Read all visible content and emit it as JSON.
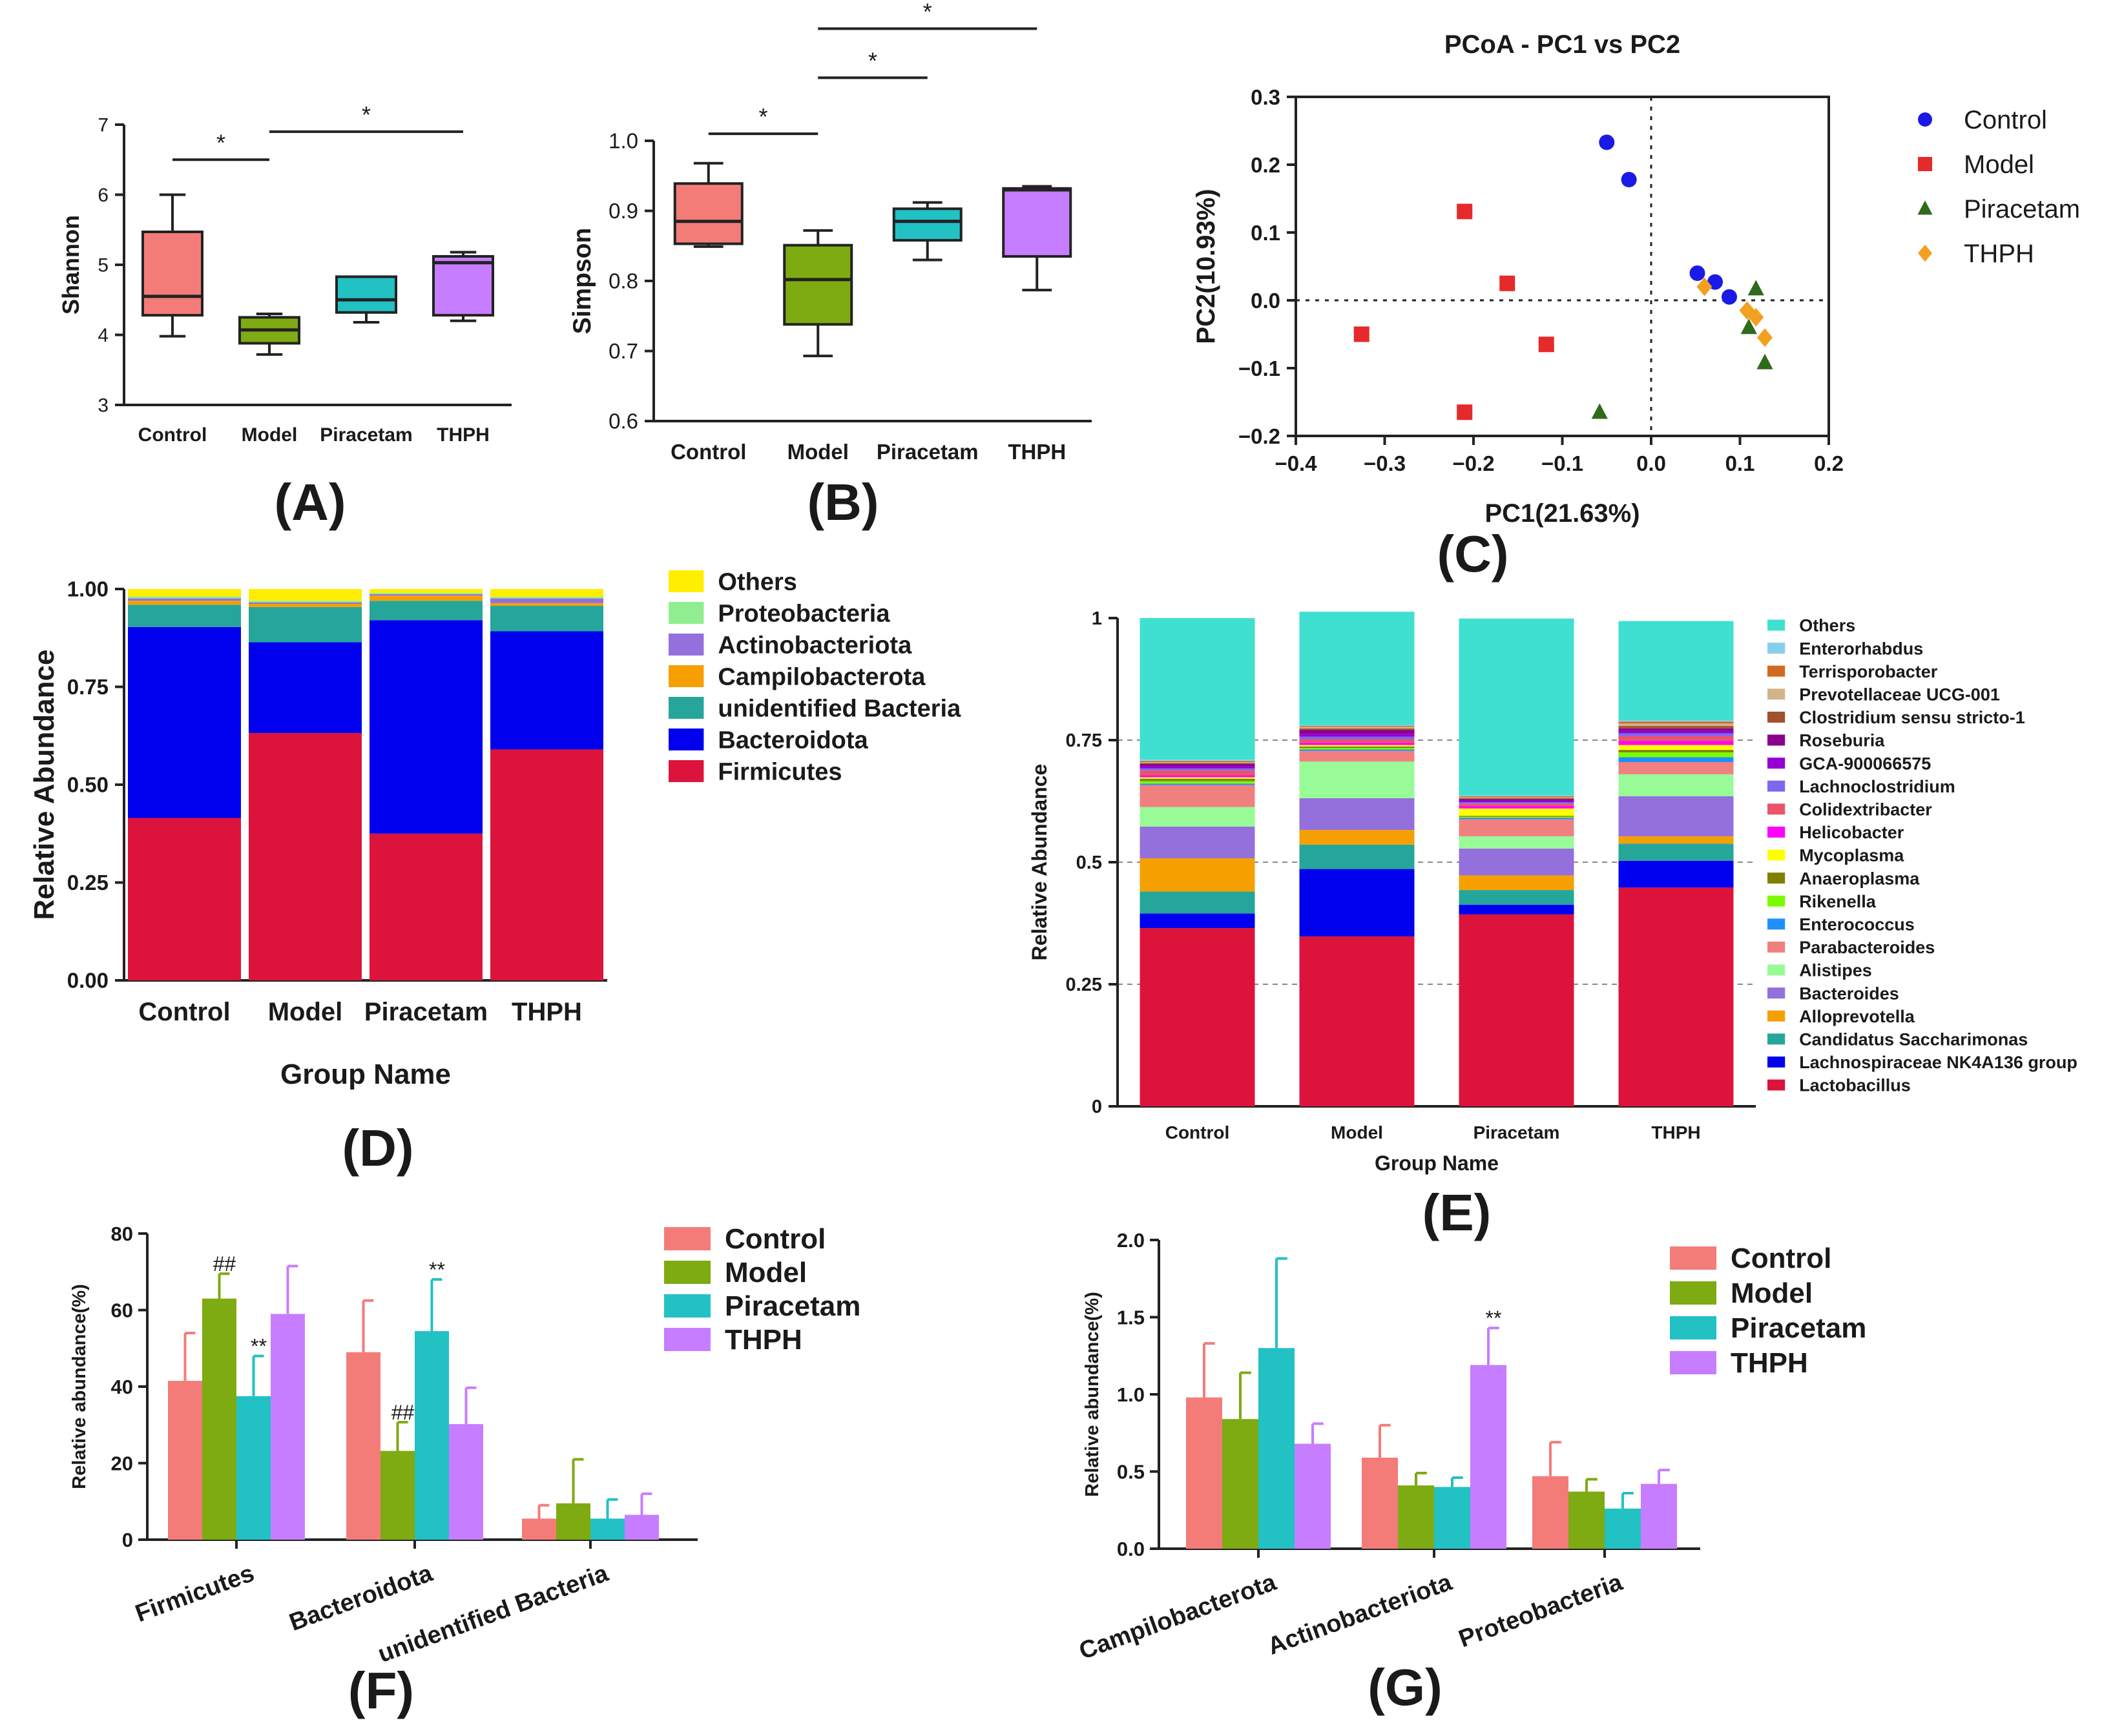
{
  "figure": {
    "panel_labels": [
      "(A)",
      "(B)",
      "(C)",
      "(D)",
      "(E)",
      "(F)",
      "(G)"
    ]
  },
  "chart_data": [
    {
      "panel": "A",
      "type": "boxplot",
      "ylabel": "Shannon",
      "ylim": [
        3,
        7
      ],
      "yticks": [
        "3",
        "4",
        "5",
        "6",
        "7"
      ],
      "categories": [
        "Control",
        "Model",
        "Piracetam",
        "THPH"
      ],
      "colors": [
        "#f37c79",
        "#7eaa12",
        "#21c1c4",
        "#c77dff"
      ],
      "boxes": [
        {
          "min": 3.98,
          "q1": 4.28,
          "median": 4.55,
          "q3": 5.47,
          "max": 6.0
        },
        {
          "min": 3.72,
          "q1": 3.88,
          "median": 4.07,
          "q3": 4.25,
          "max": 4.3
        },
        {
          "min": 4.18,
          "q1": 4.32,
          "median": 4.5,
          "q3": 4.83,
          "max": 4.83
        },
        {
          "min": 4.2,
          "q1": 4.28,
          "median": 5.03,
          "q3": 5.12,
          "max": 5.18
        }
      ],
      "significance": [
        {
          "from": 0,
          "to": 1,
          "label": "*",
          "y": 6.5
        },
        {
          "from": 1,
          "to": 3,
          "label": "*",
          "y": 6.9
        }
      ]
    },
    {
      "panel": "B",
      "type": "boxplot",
      "ylabel": "Simpson",
      "ylim": [
        0.6,
        1.0
      ],
      "yticks": [
        "0.6",
        "0.7",
        "0.8",
        "0.9",
        "1.0"
      ],
      "categories": [
        "Control",
        "Model",
        "Piracetam",
        "THPH"
      ],
      "colors": [
        "#f37c79",
        "#7eaa12",
        "#21c1c4",
        "#c77dff"
      ],
      "boxes": [
        {
          "min": 0.849,
          "q1": 0.853,
          "median": 0.885,
          "q3": 0.939,
          "max": 0.968
        },
        {
          "min": 0.693,
          "q1": 0.738,
          "median": 0.802,
          "q3": 0.851,
          "max": 0.872
        },
        {
          "min": 0.83,
          "q1": 0.858,
          "median": 0.885,
          "q3": 0.903,
          "max": 0.912
        },
        {
          "min": 0.787,
          "q1": 0.835,
          "median": 0.93,
          "q3": 0.932,
          "max": 0.935
        }
      ],
      "significance": [
        {
          "from": 0,
          "to": 1,
          "label": "*",
          "y": 1.01
        },
        {
          "from": 1,
          "to": 2,
          "label": "*",
          "y": 1.09
        },
        {
          "from": 1,
          "to": 3,
          "label": "*",
          "y": 1.16
        }
      ]
    },
    {
      "panel": "C",
      "type": "scatter",
      "title": "PCoA - PC1 vs PC2",
      "xlabel": "PC1(21.63%)",
      "ylabel": "PC2(10.93%)",
      "xlim": [
        -0.4,
        0.2
      ],
      "ylim": [
        -0.2,
        0.3
      ],
      "xticks": [
        "−0.4",
        "−0.3",
        "−0.2",
        "−0.1",
        "0.0",
        "0.1",
        "0.2"
      ],
      "yticks": [
        "−0.2",
        "−0.1",
        "0.0",
        "0.1",
        "0.2",
        "0.3"
      ],
      "series": [
        {
          "name": "Control",
          "marker": "circle",
          "color": "#1a1ae6",
          "points": [
            [
              -0.05,
              0.233
            ],
            [
              -0.025,
              0.178
            ],
            [
              0.052,
              0.04
            ],
            [
              0.072,
              0.027
            ],
            [
              0.088,
              0.005
            ]
          ]
        },
        {
          "name": "Model",
          "marker": "square",
          "color": "#e6292b",
          "points": [
            [
              -0.21,
              0.131
            ],
            [
              -0.162,
              0.025
            ],
            [
              -0.326,
              -0.05
            ],
            [
              -0.118,
              -0.065
            ],
            [
              -0.21,
              -0.165
            ]
          ]
        },
        {
          "name": "Piracetam",
          "marker": "triangle",
          "color": "#2e6b1c",
          "points": [
            [
              -0.058,
              -0.165
            ],
            [
              0.118,
              0.017
            ],
            [
              0.11,
              -0.04
            ],
            [
              0.128,
              -0.092
            ]
          ]
        },
        {
          "name": "THPH",
          "marker": "diamond",
          "color": "#f2a020",
          "points": [
            [
              0.06,
              0.02
            ],
            [
              0.108,
              -0.015
            ],
            [
              0.118,
              -0.025
            ],
            [
              0.128,
              -0.055
            ]
          ]
        }
      ]
    },
    {
      "panel": "D",
      "type": "stacked-bar",
      "xlabel": "Group Name",
      "ylabel": "Relative Abundance",
      "ylim": [
        0,
        1
      ],
      "yticks": [
        "0.00",
        "0.25",
        "0.50",
        "0.75",
        "1.00"
      ],
      "categories": [
        "Control",
        "Model",
        "Piracetam",
        "THPH"
      ],
      "series": [
        {
          "name": "Firmicutes",
          "color": "#dc143c",
          "values": [
            0.415,
            0.632,
            0.375,
            0.59
          ]
        },
        {
          "name": "Bacteroidota",
          "color": "#0000ee",
          "values": [
            0.488,
            0.232,
            0.545,
            0.302
          ]
        },
        {
          "name": "unidentified  Bacteria",
          "color": "#26a69a",
          "values": [
            0.057,
            0.09,
            0.05,
            0.065
          ]
        },
        {
          "name": "Campilobacterota",
          "color": "#f5a000",
          "values": [
            0.01,
            0.008,
            0.013,
            0.007
          ]
        },
        {
          "name": "Actinobacteriota",
          "color": "#9370db",
          "values": [
            0.006,
            0.004,
            0.004,
            0.012
          ]
        },
        {
          "name": "Proteobacteria",
          "color": "#90ee90",
          "values": [
            0.005,
            0.004,
            0.003,
            0.004
          ]
        },
        {
          "name": "Others",
          "color": "#ffee00",
          "values": [
            0.019,
            0.03,
            0.01,
            0.02
          ]
        }
      ]
    },
    {
      "panel": "E",
      "type": "stacked-bar",
      "xlabel": "Group Name",
      "ylabel": "Relative Abundance",
      "ylim": [
        0,
        1
      ],
      "yticks": [
        "0",
        "0.25",
        "0.5",
        "0.75",
        "1"
      ],
      "categories": [
        "Control",
        "Model",
        "Piracetam",
        "THPH"
      ],
      "series": [
        {
          "name": "Lactobacillus",
          "color": "#dc143c",
          "values": [
            0.365,
            0.348,
            0.393,
            0.448
          ]
        },
        {
          "name": "Lachnospiraceae NK4A136 group",
          "color": "#0000ee",
          "values": [
            0.03,
            0.138,
            0.02,
            0.055
          ]
        },
        {
          "name": "Candidatus Saccharimonas",
          "color": "#26a69a",
          "values": [
            0.045,
            0.05,
            0.03,
            0.035
          ]
        },
        {
          "name": "Alloprevotella",
          "color": "#f5a000",
          "values": [
            0.068,
            0.03,
            0.03,
            0.015
          ]
        },
        {
          "name": "Bacteroides",
          "color": "#9370db",
          "values": [
            0.065,
            0.065,
            0.055,
            0.082
          ]
        },
        {
          "name": "Alistipes",
          "color": "#98fb98",
          "values": [
            0.04,
            0.075,
            0.025,
            0.045
          ]
        },
        {
          "name": "Parabacteroides",
          "color": "#f08080",
          "values": [
            0.045,
            0.022,
            0.035,
            0.025
          ]
        },
        {
          "name": "Enterococcus",
          "color": "#1e90ff",
          "values": [
            0.003,
            0.003,
            0.003,
            0.01
          ]
        },
        {
          "name": "Rikenella",
          "color": "#7cfc00",
          "values": [
            0.005,
            0.003,
            0.002,
            0.01
          ]
        },
        {
          "name": "Anaeroplasma",
          "color": "#808000",
          "values": [
            0.005,
            0.003,
            0.002,
            0.005
          ]
        },
        {
          "name": "Mycoplasma",
          "color": "#ffff00",
          "values": [
            0.003,
            0.003,
            0.015,
            0.01
          ]
        },
        {
          "name": "Helicobacter",
          "color": "#ff00ff",
          "values": [
            0.004,
            0.005,
            0.005,
            0.008
          ]
        },
        {
          "name": "Colidextribacter",
          "color": "#e9546b",
          "values": [
            0.01,
            0.007,
            0.005,
            0.01
          ]
        },
        {
          "name": "Lachnoclostridium",
          "color": "#7b68ee",
          "values": [
            0.004,
            0.005,
            0.003,
            0.006
          ]
        },
        {
          "name": "GCA-900066575",
          "color": "#9400d3",
          "values": [
            0.005,
            0.006,
            0.004,
            0.005
          ]
        },
        {
          "name": "Roseburia",
          "color": "#8b008b",
          "values": [
            0.004,
            0.008,
            0.002,
            0.005
          ]
        },
        {
          "name": "Clostridium sensu stricto-1",
          "color": "#a0522d",
          "values": [
            0.002,
            0.003,
            0.002,
            0.005
          ]
        },
        {
          "name": "Prevotellaceae UCG-001",
          "color": "#d2b48c",
          "values": [
            0.002,
            0.003,
            0.002,
            0.005
          ]
        },
        {
          "name": "Terrisporobacter",
          "color": "#d2691e",
          "values": [
            0.002,
            0.002,
            0.002,
            0.004
          ]
        },
        {
          "name": "Enterorhabdus",
          "color": "#87ceeb",
          "values": [
            0.003,
            0.002,
            0.002,
            0.003
          ]
        },
        {
          "name": "Others",
          "color": "#40e0d0",
          "values": [
            0.29,
            0.232,
            0.362,
            0.203
          ]
        }
      ]
    },
    {
      "panel": "F",
      "type": "bar",
      "ylabel": "Relative abundance(%)",
      "ylim": [
        0,
        80
      ],
      "yticks": [
        "0",
        "20",
        "40",
        "60",
        "80"
      ],
      "categories": [
        "Firmicutes",
        "Bacteroidota",
        "unidentified Bacteria"
      ],
      "series": [
        {
          "name": "Control",
          "color": "#f37c79",
          "values": [
            41.5,
            49,
            5.5
          ],
          "errors": [
            12.5,
            13.5,
            3.5
          ]
        },
        {
          "name": "Model",
          "color": "#7eaa12",
          "values": [
            63,
            23.2,
            9.5
          ],
          "errors": [
            6.5,
            7.5,
            11.5
          ]
        },
        {
          "name": "Piracetam",
          "color": "#21c1c4",
          "values": [
            37.5,
            54.5,
            5.5
          ],
          "errors": [
            10.5,
            13.5,
            5
          ]
        },
        {
          "name": "THPH",
          "color": "#c77dff",
          "values": [
            59,
            30.2,
            6.5
          ],
          "errors": [
            12.5,
            9.5,
            5.5
          ]
        }
      ],
      "annotations": [
        {
          "category": 0,
          "series": 1,
          "label": "##"
        },
        {
          "category": 0,
          "series": 2,
          "label": "**"
        },
        {
          "category": 1,
          "series": 1,
          "label": "##"
        },
        {
          "category": 1,
          "series": 2,
          "label": "**"
        }
      ]
    },
    {
      "panel": "G",
      "type": "bar",
      "ylabel": "Relative abundance(%)",
      "ylim": [
        0,
        2.0
      ],
      "yticks": [
        "0.0",
        "0.5",
        "1.0",
        "1.5",
        "2.0"
      ],
      "categories": [
        "Campilobacterota",
        "Actinobacteriota",
        "Proteobacteria"
      ],
      "series": [
        {
          "name": "Control",
          "color": "#f37c79",
          "values": [
            0.98,
            0.59,
            0.47
          ],
          "errors": [
            0.35,
            0.21,
            0.22
          ]
        },
        {
          "name": "Model",
          "color": "#7eaa12",
          "values": [
            0.84,
            0.41,
            0.37
          ],
          "errors": [
            0.3,
            0.08,
            0.08
          ]
        },
        {
          "name": "Piracetam",
          "color": "#21c1c4",
          "values": [
            1.3,
            0.4,
            0.26
          ],
          "errors": [
            0.58,
            0.06,
            0.1
          ]
        },
        {
          "name": "THPH",
          "color": "#c77dff",
          "values": [
            0.68,
            1.19,
            0.42
          ],
          "errors": [
            0.13,
            0.24,
            0.09
          ]
        }
      ],
      "annotations": [
        {
          "category": 1,
          "series": 3,
          "label": "**"
        }
      ]
    }
  ]
}
